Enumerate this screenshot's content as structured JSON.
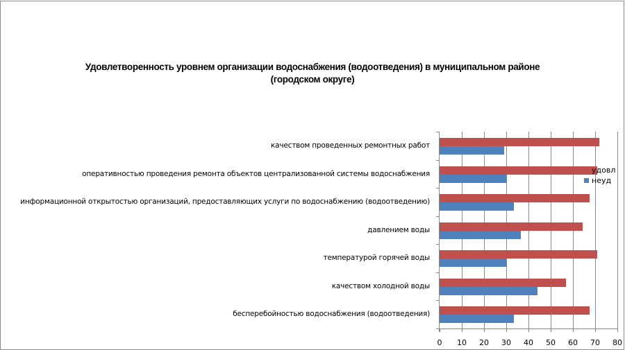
{
  "chart_data": {
    "type": "bar",
    "orientation": "horizontal",
    "title": "Удовлетворенность уровнем организации водоснабжения (водоотведения) в муниципальном районе (городском округе)",
    "title_lines": [
      "Удовлетворенность уровнем организации водоснабжения (водоотведения) в муниципальном районе",
      "(городском округе)"
    ],
    "categories": [
      "качеством проведенных ремонтных работ",
      "оперативностью проведения ремонта объектов централизованной системы водоснабжения",
      "информационной открытостью организаций, предоставляющих услуги по водоснабжению (водоотведению)",
      "давлением воды",
      "температурой горячей воды",
      "качеством холодной воды",
      "бесперебойностью водоснабжения (водоотведения)"
    ],
    "series": [
      {
        "name": "удовл",
        "color": "#c0504d",
        "values": [
          72,
          71,
          67.5,
          64.5,
          71,
          57,
          67.5
        ]
      },
      {
        "name": "неуд",
        "color": "#4f81bd",
        "values": [
          29,
          30,
          33.5,
          36.5,
          30,
          44,
          33.5
        ]
      }
    ],
    "xlabel": "",
    "ylabel": "",
    "xlim": [
      0,
      80
    ],
    "xticks": [
      "0",
      "10",
      "20",
      "30",
      "40",
      "50",
      "60",
      "70",
      "80"
    ],
    "grid": true,
    "legend_position": "right"
  }
}
